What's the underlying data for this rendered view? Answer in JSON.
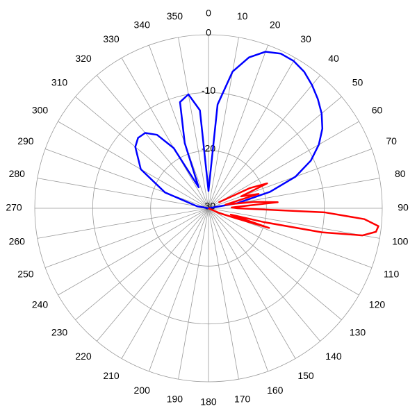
{
  "chart_data": {
    "type": "polar",
    "xticks": [
      0,
      10,
      20,
      30,
      40,
      50,
      60,
      70,
      80,
      90,
      100,
      110,
      120,
      130,
      140,
      150,
      160,
      170,
      180,
      190,
      200,
      210,
      220,
      230,
      240,
      250,
      260,
      270,
      280,
      290,
      300,
      310,
      320,
      330,
      340,
      350
    ],
    "xlim": [
      0,
      360
    ],
    "ylim": [
      -30,
      0
    ],
    "yticks": [
      0,
      -10,
      -20,
      -30
    ],
    "grid": true,
    "series": [
      {
        "color": "#0000ff",
        "x": [
          270,
          280,
          290,
          300,
          310,
          315,
          320,
          325,
          330,
          335,
          340,
          345,
          350,
          355,
          360,
          365,
          370,
          375,
          380,
          385,
          390,
          395,
          400,
          405,
          410,
          415,
          420,
          425,
          430,
          435,
          440,
          445
        ],
        "values": [
          -30,
          -28,
          -22,
          -16.5,
          -13.5,
          -12.8,
          -13,
          -14.5,
          -18,
          -26,
          -18,
          -11,
          -10,
          -13,
          -27,
          -12,
          -6,
          -3,
          -1.2,
          -0.5,
          -0.6,
          -1.2,
          -2.2,
          -3.3,
          -4.5,
          -6,
          -8,
          -10.5,
          -14,
          -19,
          -25,
          -30
        ]
      },
      {
        "color": "#ff0000",
        "x": [
          60,
          64,
          67,
          70,
          74,
          78,
          82,
          85,
          88,
          90,
          92,
          94,
          96,
          98,
          100,
          102,
          104,
          106,
          108,
          110,
          114,
          120
        ],
        "values": [
          -28,
          -22,
          -19,
          -24,
          -21,
          -27,
          -22,
          -18,
          -26,
          -25,
          -10,
          -3,
          -0.5,
          -0.8,
          -3,
          -10,
          -20,
          -26,
          -19,
          -25,
          -28,
          -30
        ]
      }
    ]
  }
}
